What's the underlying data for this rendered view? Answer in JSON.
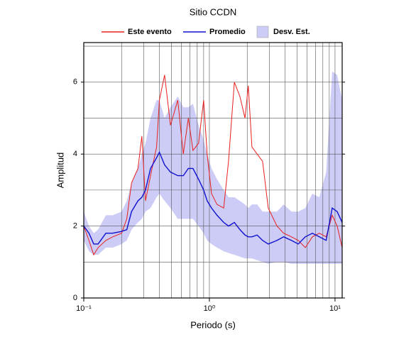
{
  "chart_data": {
    "type": "line",
    "title": "Sitio CCDN",
    "xlabel": "Periodo (s)",
    "ylabel": "Amplitud",
    "xscale": "log",
    "grid": true,
    "legend": "top",
    "xlim": [
      0.1,
      11.4
    ],
    "ylim": [
      0,
      7.1
    ],
    "xticks": [
      {
        "value": 0.1,
        "label": "10⁻¹"
      },
      {
        "value": 1,
        "label": "10⁰"
      },
      {
        "value": 10,
        "label": "10¹"
      }
    ],
    "xminor": [
      0.2,
      0.3,
      0.4,
      0.5,
      0.6,
      0.7,
      0.8,
      0.9,
      2,
      3,
      4,
      5,
      6,
      7,
      8,
      9
    ],
    "yticks": [
      0,
      2,
      4,
      6
    ],
    "yminor": [
      1,
      3,
      5,
      7
    ],
    "x": [
      0.1,
      0.11,
      0.12,
      0.13,
      0.15,
      0.17,
      0.2,
      0.22,
      0.24,
      0.27,
      0.29,
      0.31,
      0.34,
      0.38,
      0.4,
      0.44,
      0.49,
      0.56,
      0.62,
      0.68,
      0.74,
      0.82,
      0.9,
      0.96,
      1.04,
      1.15,
      1.3,
      1.42,
      1.58,
      1.75,
      1.92,
      2.04,
      2.18,
      2.4,
      2.65,
      2.94,
      3.45,
      3.9,
      4.5,
      5.1,
      5.8,
      6.6,
      7.5,
      8.5,
      9.5,
      10.4,
      11.4
    ],
    "band": {
      "name": "Desv. Est.",
      "color": "#ccccf7",
      "upper": [
        2.4,
        2.0,
        1.8,
        1.9,
        2.3,
        2.3,
        2.4,
        2.7,
        3.2,
        3.6,
        4.0,
        4.3,
        5.0,
        5.5,
        5.5,
        5.0,
        5.3,
        5.6,
        5.3,
        5.3,
        5.4,
        4.8,
        4.4,
        4.0,
        3.6,
        3.3,
        3.0,
        2.8,
        2.8,
        2.7,
        2.6,
        2.5,
        2.6,
        2.6,
        2.4,
        2.4,
        2.4,
        2.6,
        2.4,
        2.4,
        2.5,
        2.9,
        2.8,
        3.5,
        6.3,
        6.2,
        5.5
      ],
      "lower": [
        1.6,
        1.3,
        1.2,
        1.2,
        1.4,
        1.4,
        1.5,
        1.6,
        1.9,
        2.1,
        2.2,
        2.4,
        2.5,
        2.8,
        2.9,
        2.7,
        2.5,
        2.2,
        2.2,
        2.2,
        2.2,
        2.0,
        1.8,
        1.6,
        1.5,
        1.4,
        1.3,
        1.25,
        1.2,
        1.15,
        1.1,
        1.1,
        1.1,
        1.05,
        1.0,
        0.95,
        1.0,
        1.0,
        0.95,
        0.95,
        0.95,
        0.95,
        0.95,
        0.95,
        0.95,
        0.95,
        0.95
      ]
    },
    "series": [
      {
        "name": "Este evento",
        "color": "#e8201e",
        "values": [
          2.0,
          1.6,
          1.2,
          1.4,
          1.6,
          1.7,
          1.8,
          2.2,
          3.2,
          3.6,
          4.5,
          2.7,
          3.4,
          4.2,
          5.5,
          6.2,
          4.8,
          5.5,
          4.0,
          5.0,
          4.1,
          4.3,
          5.5,
          4.0,
          2.9,
          2.6,
          2.5,
          3.8,
          6.0,
          5.6,
          5.0,
          5.9,
          4.2,
          4.0,
          3.8,
          2.5,
          2.0,
          1.8,
          1.7,
          1.6,
          1.4,
          1.7,
          1.8,
          1.7,
          2.3,
          2.0,
          1.4
        ]
      },
      {
        "name": "Promedio",
        "color": "#1010d0",
        "values": [
          2.0,
          1.8,
          1.5,
          1.5,
          1.8,
          1.8,
          1.85,
          1.9,
          2.4,
          2.7,
          2.8,
          3.0,
          3.6,
          3.9,
          4.05,
          3.7,
          3.5,
          3.4,
          3.4,
          3.6,
          3.6,
          3.3,
          3.0,
          2.7,
          2.5,
          2.3,
          2.1,
          2.0,
          2.1,
          1.9,
          1.75,
          1.7,
          1.7,
          1.75,
          1.6,
          1.5,
          1.6,
          1.7,
          1.6,
          1.5,
          1.7,
          1.8,
          1.7,
          1.6,
          2.5,
          2.4,
          2.1
        ]
      }
    ]
  }
}
